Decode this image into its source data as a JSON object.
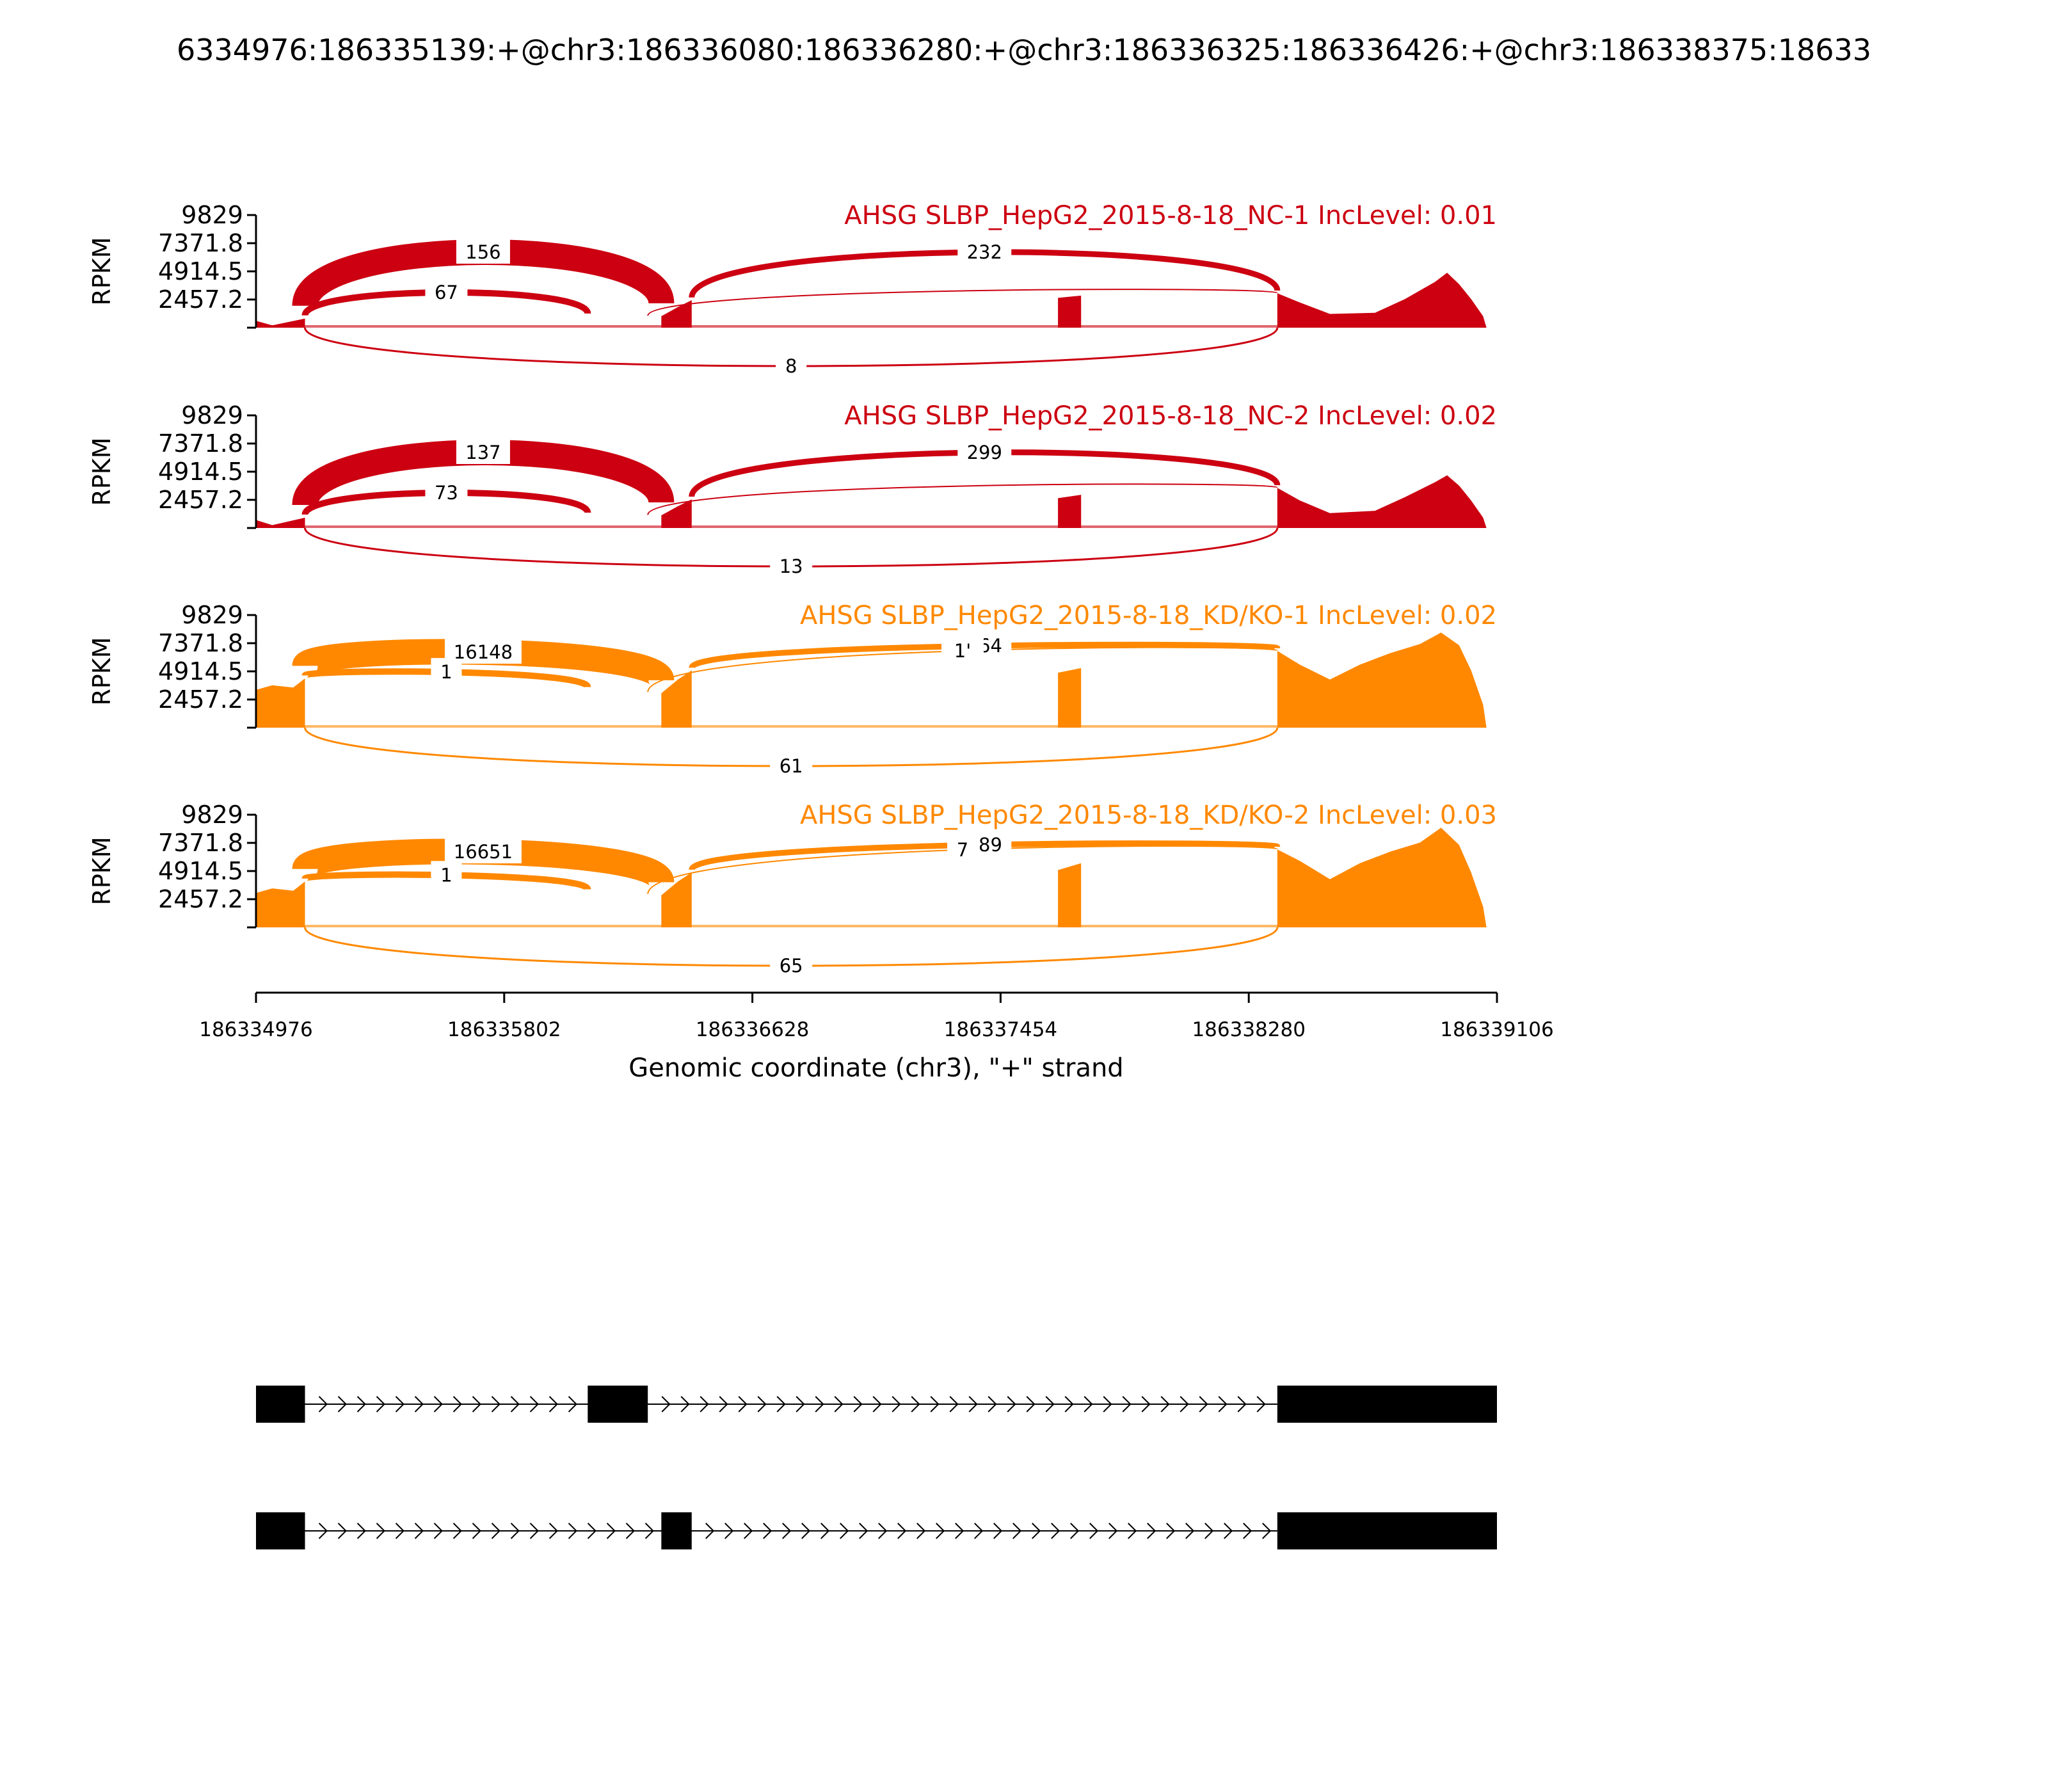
{
  "chart_data": {
    "type": "sashimi",
    "title": "6334976:186335139:+@chr3:186336080:186336280:+@chr3:186336325:186336426:+@chr3:186338375:18633",
    "xlabel": "Genomic coordinate (chr3), \"+\" strand",
    "ylabel": "RPKM",
    "xlim": [
      186334976,
      186339106
    ],
    "ylim": [
      0,
      9829
    ],
    "x_ticks": [
      "186334976",
      "186335802",
      "186336628",
      "186337454",
      "186338280",
      "186339106"
    ],
    "y_ticks": [
      "2457.2",
      "4914.5",
      "7371.8",
      "9829"
    ],
    "panels": [
      {
        "title": "AHSG SLBP_HepG2_2015-8-18_NC-1 IncLevel: 0.01",
        "color": "#cc0011",
        "coverage": [
          [
            186334976,
            600
          ],
          [
            186335030,
            200
          ],
          [
            186335139,
            800
          ],
          [
            186336325,
            1000
          ],
          [
            186336380,
            1800
          ],
          [
            186336426,
            2400
          ],
          [
            186337645,
            2600
          ],
          [
            186337722,
            2800
          ],
          [
            186338375,
            3000
          ],
          [
            186338450,
            2200
          ],
          [
            186338550,
            1200
          ],
          [
            186338700,
            1300
          ],
          [
            186338800,
            2500
          ],
          [
            186338900,
            4000
          ],
          [
            186338940,
            4800
          ],
          [
            186338980,
            3800
          ],
          [
            186339020,
            2500
          ],
          [
            186339060,
            1000
          ],
          [
            186339071,
            0
          ]
        ],
        "junctions": [
          {
            "start": 186335139,
            "end": 186336080,
            "label": "67",
            "side": "above"
          },
          {
            "start": 186335139,
            "end": 186336325,
            "label": "156",
            "side": "above"
          },
          {
            "start": 186336426,
            "end": 186338375,
            "label": "232",
            "side": "above"
          },
          {
            "start": 186336280,
            "end": 186338375,
            "label": "",
            "side": "above"
          },
          {
            "start": 186335139,
            "end": 186338375,
            "label": "8",
            "side": "below"
          }
        ]
      },
      {
        "title": "AHSG SLBP_HepG2_2015-8-18_NC-2 IncLevel: 0.02",
        "color": "#cc0011",
        "coverage": [
          [
            186334976,
            700
          ],
          [
            186335030,
            250
          ],
          [
            186335139,
            900
          ],
          [
            186336325,
            1100
          ],
          [
            186336380,
            1900
          ],
          [
            186336426,
            2500
          ],
          [
            186337645,
            2600
          ],
          [
            186337722,
            2900
          ],
          [
            186338375,
            3500
          ],
          [
            186338450,
            2400
          ],
          [
            186338550,
            1300
          ],
          [
            186338700,
            1500
          ],
          [
            186338800,
            2700
          ],
          [
            186338900,
            4000
          ],
          [
            186338940,
            4600
          ],
          [
            186338980,
            3700
          ],
          [
            186339020,
            2400
          ],
          [
            186339060,
            900
          ],
          [
            186339071,
            0
          ]
        ],
        "junctions": [
          {
            "start": 186335139,
            "end": 186336080,
            "label": "73",
            "side": "above"
          },
          {
            "start": 186335139,
            "end": 186336325,
            "label": "137",
            "side": "above"
          },
          {
            "start": 186336426,
            "end": 186338375,
            "label": "299",
            "side": "above"
          },
          {
            "start": 186336280,
            "end": 186338375,
            "label": "",
            "side": "above"
          },
          {
            "start": 186335139,
            "end": 186338375,
            "label": "13",
            "side": "below"
          }
        ]
      },
      {
        "title": "AHSG SLBP_HepG2_2015-8-18_KD/KO-1 IncLevel: 0.02",
        "color": "#ff8800",
        "coverage": [
          [
            186334976,
            3300
          ],
          [
            186335030,
            3700
          ],
          [
            186335100,
            3500
          ],
          [
            186335139,
            4300
          ],
          [
            186336325,
            3000
          ],
          [
            186336380,
            4200
          ],
          [
            186336426,
            5000
          ],
          [
            186337645,
            4800
          ],
          [
            186337722,
            5200
          ],
          [
            186338375,
            6700
          ],
          [
            186338450,
            5500
          ],
          [
            186338550,
            4200
          ],
          [
            186338650,
            5500
          ],
          [
            186338750,
            6500
          ],
          [
            186338850,
            7300
          ],
          [
            186338920,
            8300
          ],
          [
            186338980,
            7200
          ],
          [
            186339020,
            5000
          ],
          [
            186339060,
            2000
          ],
          [
            186339071,
            0
          ]
        ],
        "junctions": [
          {
            "start": 186335139,
            "end": 186336080,
            "label": "1",
            "side": "above"
          },
          {
            "start": 186335139,
            "end": 186336325,
            "label": "16148",
            "side": "above"
          },
          {
            "start": 186336426,
            "end": 186338375,
            "label": "364",
            "side": "above"
          },
          {
            "start": 186336280,
            "end": 186338375,
            "label": "1'",
            "side": "above"
          },
          {
            "start": 186335139,
            "end": 186338375,
            "label": "61",
            "side": "below"
          }
        ]
      },
      {
        "title": "AHSG SLBP_HepG2_2015-8-18_KD/KO-2 IncLevel: 0.03",
        "color": "#ff8800",
        "coverage": [
          [
            186334976,
            3000
          ],
          [
            186335030,
            3400
          ],
          [
            186335100,
            3200
          ],
          [
            186335139,
            4000
          ],
          [
            186336325,
            2800
          ],
          [
            186336380,
            4000
          ],
          [
            186336426,
            4800
          ],
          [
            186337645,
            5000
          ],
          [
            186337722,
            5600
          ],
          [
            186338375,
            6800
          ],
          [
            186338450,
            5800
          ],
          [
            186338550,
            4200
          ],
          [
            186338650,
            5600
          ],
          [
            186338750,
            6600
          ],
          [
            186338850,
            7400
          ],
          [
            186338920,
            8700
          ],
          [
            186338980,
            7200
          ],
          [
            186339020,
            4800
          ],
          [
            186339060,
            1800
          ],
          [
            186339071,
            0
          ]
        ],
        "junctions": [
          {
            "start": 186335139,
            "end": 186336080,
            "label": "1",
            "side": "above"
          },
          {
            "start": 186335139,
            "end": 186336325,
            "label": "16651",
            "side": "above"
          },
          {
            "start": 186336426,
            "end": 186338375,
            "label": "389",
            "side": "above"
          },
          {
            "start": 186336280,
            "end": 186338375,
            "label": "7",
            "side": "above"
          },
          {
            "start": 186335139,
            "end": 186338375,
            "label": "65",
            "side": "below"
          }
        ]
      }
    ],
    "gene_models": [
      {
        "exons": [
          [
            186334976,
            186335139
          ],
          [
            186336080,
            186336280
          ],
          [
            186338375,
            186339106
          ]
        ]
      },
      {
        "exons": [
          [
            186334976,
            186335139
          ],
          [
            186336325,
            186336426
          ],
          [
            186338375,
            186339106
          ]
        ]
      }
    ]
  }
}
